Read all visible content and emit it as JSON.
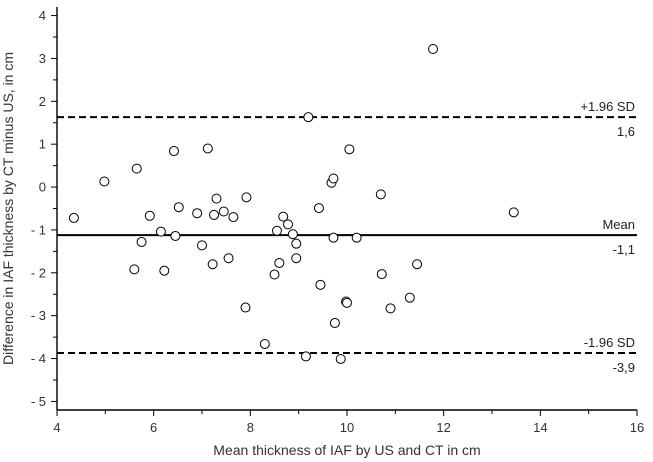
{
  "chart_data": {
    "type": "scatter",
    "xlabel": "Mean thickness of IAF by US and CT in cm",
    "ylabel": "Difference in IAF thickness by CT minus US, in cm",
    "xlim": [
      4,
      16
    ],
    "ylim": [
      -5.2,
      4.2
    ],
    "x_ticks": [
      4,
      6,
      8,
      10,
      12,
      14,
      16
    ],
    "y_ticks": [
      -5,
      -4,
      -3,
      -2,
      -1,
      0,
      1,
      2,
      3,
      4
    ],
    "x_tick_labels": [
      "4",
      "6",
      "8",
      "10",
      "12",
      "14",
      "16"
    ],
    "y_tick_labels": [
      "- 5",
      "- 4",
      "- 3",
      "- 2",
      "- 1",
      "0",
      "1",
      "2",
      "3",
      "4"
    ],
    "grid": false,
    "marker": "open-circle",
    "reference_lines": [
      {
        "y": 1.63,
        "style": "dashed",
        "label_above": "+1.96 SD",
        "label_below": "1,6"
      },
      {
        "y": -1.12,
        "style": "solid",
        "label_above": "Mean",
        "label_below": "-1,1"
      },
      {
        "y": -3.87,
        "style": "dashed",
        "label_above": "-1.96 SD",
        "label_below": "-3,9"
      }
    ],
    "points": [
      {
        "x": 4.35,
        "y": -0.72
      },
      {
        "x": 4.98,
        "y": 0.13
      },
      {
        "x": 5.6,
        "y": -1.92
      },
      {
        "x": 5.65,
        "y": 0.43
      },
      {
        "x": 5.75,
        "y": -1.28
      },
      {
        "x": 5.92,
        "y": -0.67
      },
      {
        "x": 6.15,
        "y": -1.04
      },
      {
        "x": 6.22,
        "y": -1.95
      },
      {
        "x": 6.42,
        "y": 0.84
      },
      {
        "x": 6.45,
        "y": -1.14
      },
      {
        "x": 6.52,
        "y": -0.47
      },
      {
        "x": 6.9,
        "y": -0.61
      },
      {
        "x": 7.0,
        "y": -1.36
      },
      {
        "x": 7.12,
        "y": 0.9
      },
      {
        "x": 7.22,
        "y": -1.8
      },
      {
        "x": 7.25,
        "y": -0.65
      },
      {
        "x": 7.3,
        "y": -0.27
      },
      {
        "x": 7.45,
        "y": -0.57
      },
      {
        "x": 7.55,
        "y": -1.66
      },
      {
        "x": 7.65,
        "y": -0.7
      },
      {
        "x": 7.9,
        "y": -2.81
      },
      {
        "x": 7.92,
        "y": -0.24
      },
      {
        "x": 8.3,
        "y": -3.66
      },
      {
        "x": 8.5,
        "y": -2.04
      },
      {
        "x": 8.55,
        "y": -1.02
      },
      {
        "x": 8.6,
        "y": -1.77
      },
      {
        "x": 8.68,
        "y": -0.69
      },
      {
        "x": 8.78,
        "y": -0.87
      },
      {
        "x": 8.88,
        "y": -1.1
      },
      {
        "x": 8.95,
        "y": -1.32
      },
      {
        "x": 8.95,
        "y": -1.66
      },
      {
        "x": 9.15,
        "y": -3.95
      },
      {
        "x": 9.2,
        "y": 1.63
      },
      {
        "x": 9.42,
        "y": -0.49
      },
      {
        "x": 9.45,
        "y": -2.28
      },
      {
        "x": 9.68,
        "y": 0.1
      },
      {
        "x": 9.72,
        "y": 0.2
      },
      {
        "x": 9.72,
        "y": -1.18
      },
      {
        "x": 9.75,
        "y": -3.17
      },
      {
        "x": 9.87,
        "y": -4.01
      },
      {
        "x": 9.98,
        "y": -2.67
      },
      {
        "x": 10.0,
        "y": -2.7
      },
      {
        "x": 10.05,
        "y": 0.88
      },
      {
        "x": 10.2,
        "y": -1.18
      },
      {
        "x": 10.7,
        "y": -0.17
      },
      {
        "x": 10.72,
        "y": -2.03
      },
      {
        "x": 10.9,
        "y": -2.83
      },
      {
        "x": 11.3,
        "y": -2.58
      },
      {
        "x": 11.45,
        "y": -1.8
      },
      {
        "x": 11.78,
        "y": 3.22
      },
      {
        "x": 13.45,
        "y": -0.59
      }
    ]
  }
}
